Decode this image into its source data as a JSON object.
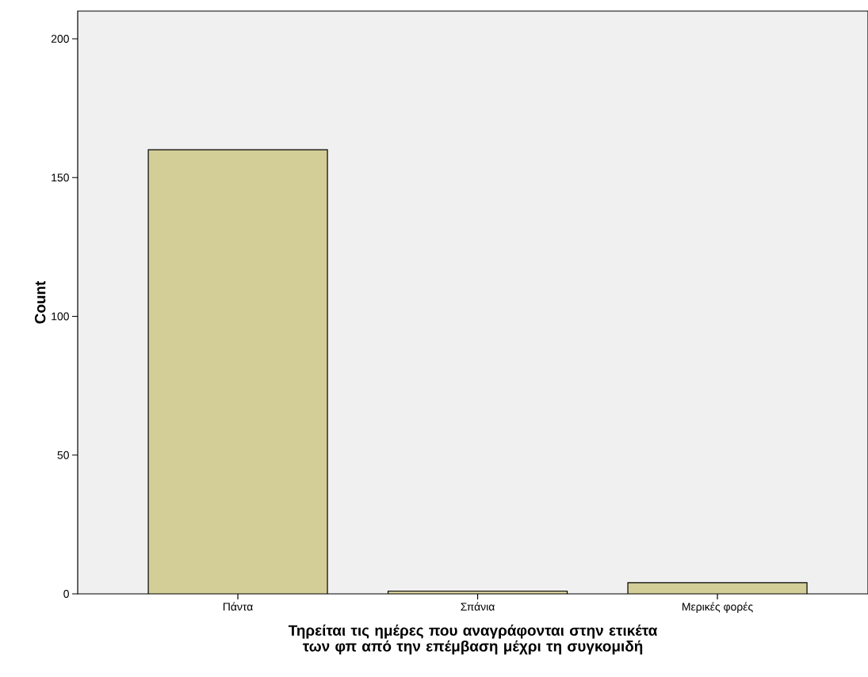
{
  "chart_data": {
    "type": "bar",
    "categories": [
      "Πάντα",
      "Σπάνια",
      "Μερικές φορές"
    ],
    "values": [
      160,
      1,
      4
    ],
    "color": "#d3ce97",
    "xlabel": "Τηρείται τις ημέρες που αναγράφονται στην ετικέτα των φπ από την επέμβαση μέχρι τη συγκομιδή",
    "ylabel": "Count",
    "ylim": [
      0,
      210
    ],
    "yticks": [
      0,
      50,
      100,
      150,
      200
    ]
  }
}
